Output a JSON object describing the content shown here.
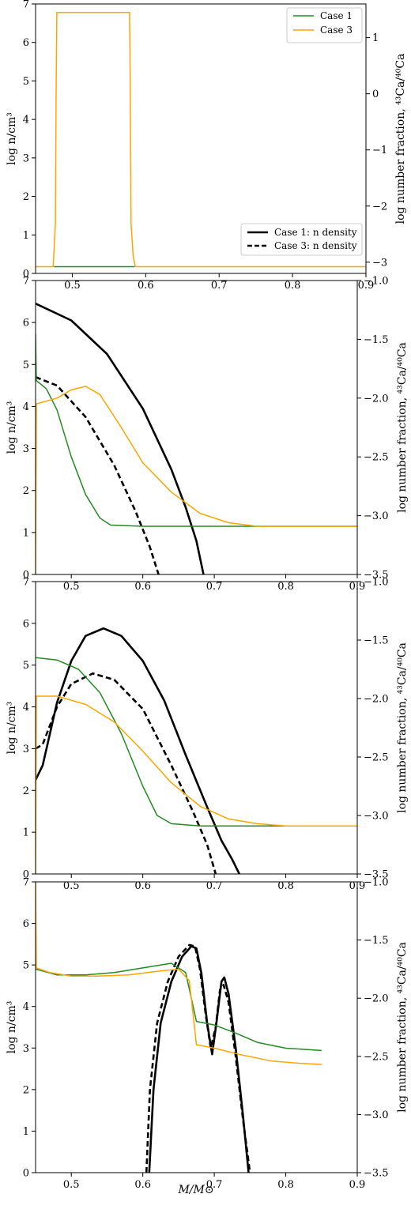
{
  "figure": {
    "xlabel": "M/M⊙"
  },
  "colors": {
    "case1_fraction": "#228B22",
    "case3_fraction": "#FFA500",
    "density": "#000000"
  },
  "chart_data": [
    {
      "type": "line",
      "panel": 1,
      "ylabel_left": "log n/cm³",
      "ylabel_right": "log number fraction, ⁴³Ca/⁴⁰Ca",
      "xlim": [
        0.45,
        0.9
      ],
      "ylim_left": [
        0,
        7
      ],
      "ylim_right": [
        -3.2,
        1.6
      ],
      "xticks": [
        "0.5",
        "0.6",
        "0.7",
        "0.8",
        "0.9"
      ],
      "yticks_left": [
        "0",
        "1",
        "2",
        "3",
        "4",
        "5",
        "6",
        "7"
      ],
      "yticks_right": [
        "−3",
        "−2",
        "−1",
        "0",
        "1"
      ],
      "legend_fraction": {
        "placement": "upper-right",
        "entries": [
          "Case 1",
          "Case 3"
        ]
      },
      "legend_density": {
        "placement": "lower-right",
        "entries": [
          "Case 1: n density",
          "Case 3: n density"
        ]
      },
      "series": [
        {
          "name": "Case 1",
          "axis": "right",
          "style": "solid",
          "color": "#228B22",
          "points": [
            [
              0.475,
              -3.08
            ],
            [
              0.585,
              -3.08
            ]
          ]
        },
        {
          "name": "Case 3",
          "axis": "right",
          "style": "solid",
          "color": "#FFA500",
          "points": [
            [
              0.45,
              -3.08
            ],
            [
              0.474,
              -3.08
            ],
            [
              0.477,
              -2.3
            ],
            [
              0.478,
              0.0
            ],
            [
              0.479,
              1.45
            ],
            [
              0.578,
              1.45
            ],
            [
              0.579,
              0.2
            ],
            [
              0.58,
              -2.3
            ],
            [
              0.583,
              -2.9
            ],
            [
              0.586,
              -3.08
            ],
            [
              0.9,
              -3.08
            ]
          ]
        }
      ]
    },
    {
      "type": "line",
      "panel": 2,
      "ylabel_left": "log n/cm³",
      "ylabel_right": "log number fraction, ⁴³Ca/⁴⁰Ca",
      "xlim": [
        0.45,
        0.9
      ],
      "ylim_left": [
        0,
        7
      ],
      "ylim_right": [
        -3.5,
        -1.0
      ],
      "xticks": [
        "0.5",
        "0.6",
        "0.7",
        "0.8",
        "0.9"
      ],
      "yticks_left": [
        "0",
        "1",
        "2",
        "3",
        "4",
        "5",
        "6",
        "7"
      ],
      "yticks_right": [
        "−3.5",
        "−3.0",
        "−2.5",
        "−2.0",
        "−1.5",
        "−1.0"
      ],
      "series": [
        {
          "name": "Case 1: n density",
          "axis": "left",
          "style": "solid",
          "color": "#000000",
          "points": [
            [
              0.45,
              6.45
            ],
            [
              0.5,
              6.05
            ],
            [
              0.55,
              5.25
            ],
            [
              0.6,
              3.95
            ],
            [
              0.64,
              2.5
            ],
            [
              0.66,
              1.6
            ],
            [
              0.675,
              0.8
            ],
            [
              0.685,
              0.0
            ]
          ]
        },
        {
          "name": "Case 3: n density",
          "axis": "left",
          "style": "dashed",
          "color": "#000000",
          "points": [
            [
              0.45,
              4.7
            ],
            [
              0.48,
              4.5
            ],
            [
              0.52,
              3.75
            ],
            [
              0.56,
              2.6
            ],
            [
              0.59,
              1.5
            ],
            [
              0.61,
              0.65
            ],
            [
              0.622,
              0.0
            ]
          ]
        },
        {
          "name": "Case 1",
          "axis": "right",
          "style": "solid",
          "color": "#228B22",
          "points": [
            [
              0.45,
              -1.45
            ],
            [
              0.451,
              -1.85
            ],
            [
              0.465,
              -1.92
            ],
            [
              0.48,
              -2.1
            ],
            [
              0.5,
              -2.5
            ],
            [
              0.52,
              -2.82
            ],
            [
              0.54,
              -3.02
            ],
            [
              0.555,
              -3.08
            ],
            [
              0.6,
              -3.09
            ],
            [
              0.9,
              -3.09
            ]
          ]
        },
        {
          "name": "Case 3",
          "axis": "right",
          "style": "solid",
          "color": "#FFA500",
          "points": [
            [
              0.45,
              -3.5
            ],
            [
              0.451,
              -2.05
            ],
            [
              0.48,
              -2.0
            ],
            [
              0.5,
              -1.93
            ],
            [
              0.52,
              -1.9
            ],
            [
              0.54,
              -1.97
            ],
            [
              0.57,
              -2.25
            ],
            [
              0.6,
              -2.55
            ],
            [
              0.64,
              -2.8
            ],
            [
              0.68,
              -2.98
            ],
            [
              0.72,
              -3.06
            ],
            [
              0.76,
              -3.09
            ],
            [
              0.9,
              -3.09
            ]
          ]
        }
      ]
    },
    {
      "type": "line",
      "panel": 3,
      "ylabel_left": "log n/cm³",
      "ylabel_right": "log number fraction, ⁴³Ca/⁴⁰Ca",
      "xlim": [
        0.45,
        0.9
      ],
      "ylim_left": [
        0,
        7
      ],
      "ylim_right": [
        -3.5,
        -1.0
      ],
      "xticks": [
        "0.5",
        "0.6",
        "0.7",
        "0.8",
        "0.9"
      ],
      "yticks_left": [
        "0",
        "1",
        "2",
        "3",
        "4",
        "5",
        "6",
        "7"
      ],
      "yticks_right": [
        "−3.5",
        "−3.0",
        "−2.5",
        "−2.0",
        "−1.5",
        "−1.0"
      ],
      "series": [
        {
          "name": "Case 1: n density",
          "axis": "left",
          "style": "solid",
          "color": "#000000",
          "points": [
            [
              0.45,
              2.25
            ],
            [
              0.46,
              2.6
            ],
            [
              0.48,
              4.1
            ],
            [
              0.5,
              5.1
            ],
            [
              0.52,
              5.7
            ],
            [
              0.545,
              5.88
            ],
            [
              0.57,
              5.7
            ],
            [
              0.6,
              5.1
            ],
            [
              0.63,
              4.15
            ],
            [
              0.66,
              2.85
            ],
            [
              0.69,
              1.6
            ],
            [
              0.71,
              0.8
            ],
            [
              0.725,
              0.35
            ],
            [
              0.735,
              0.0
            ]
          ]
        },
        {
          "name": "Case 3: n density",
          "axis": "left",
          "style": "dashed",
          "color": "#000000",
          "points": [
            [
              0.45,
              3.0
            ],
            [
              0.46,
              3.1
            ],
            [
              0.48,
              4.0
            ],
            [
              0.5,
              4.55
            ],
            [
              0.53,
              4.8
            ],
            [
              0.56,
              4.65
            ],
            [
              0.6,
              3.95
            ],
            [
              0.64,
              2.6
            ],
            [
              0.67,
              1.5
            ],
            [
              0.69,
              0.7
            ],
            [
              0.702,
              0.0
            ]
          ]
        },
        {
          "name": "Case 1",
          "axis": "right",
          "style": "solid",
          "color": "#228B22",
          "points": [
            [
              0.45,
              -1.65
            ],
            [
              0.48,
              -1.67
            ],
            [
              0.51,
              -1.75
            ],
            [
              0.54,
              -1.95
            ],
            [
              0.57,
              -2.3
            ],
            [
              0.6,
              -2.75
            ],
            [
              0.62,
              -3.0
            ],
            [
              0.64,
              -3.07
            ],
            [
              0.68,
              -3.09
            ],
            [
              0.9,
              -3.09
            ]
          ]
        },
        {
          "name": "Case 3",
          "axis": "right",
          "style": "solid",
          "color": "#FFA500",
          "points": [
            [
              0.45,
              -3.5
            ],
            [
              0.451,
              -1.98
            ],
            [
              0.48,
              -1.98
            ],
            [
              0.52,
              -2.05
            ],
            [
              0.56,
              -2.2
            ],
            [
              0.6,
              -2.45
            ],
            [
              0.64,
              -2.72
            ],
            [
              0.68,
              -2.92
            ],
            [
              0.72,
              -3.03
            ],
            [
              0.76,
              -3.07
            ],
            [
              0.8,
              -3.09
            ],
            [
              0.9,
              -3.09
            ]
          ]
        }
      ]
    },
    {
      "type": "line",
      "panel": 4,
      "ylabel_left": "log n/cm³",
      "ylabel_right": "log number fraction, ⁴³Ca/⁴⁰Ca",
      "xlim": [
        0.45,
        0.9
      ],
      "ylim_left": [
        0,
        7
      ],
      "ylim_right": [
        -3.5,
        -1.0
      ],
      "xticks": [
        "0.5",
        "0.6",
        "0.7",
        "0.8",
        "0.9"
      ],
      "yticks_left": [
        "0",
        "1",
        "2",
        "3",
        "4",
        "5",
        "6",
        "7"
      ],
      "yticks_right": [
        "−3.5",
        "−3.0",
        "−2.5",
        "−2.0",
        "−1.5",
        "−1.0"
      ],
      "series": [
        {
          "name": "Case 1: n density",
          "axis": "left",
          "style": "solid",
          "color": "#000000",
          "points": [
            [
              0.609,
              0.0
            ],
            [
              0.615,
              2.0
            ],
            [
              0.625,
              3.6
            ],
            [
              0.64,
              4.6
            ],
            [
              0.655,
              5.2
            ],
            [
              0.668,
              5.45
            ],
            [
              0.675,
              5.4
            ],
            [
              0.682,
              4.8
            ],
            [
              0.69,
              3.6
            ],
            [
              0.697,
              2.85
            ],
            [
              0.703,
              3.6
            ],
            [
              0.71,
              4.6
            ],
            [
              0.714,
              4.7
            ],
            [
              0.72,
              4.3
            ],
            [
              0.73,
              3.0
            ],
            [
              0.74,
              1.4
            ],
            [
              0.748,
              0.0
            ]
          ]
        },
        {
          "name": "Case 3: n density",
          "axis": "left",
          "style": "dashed",
          "color": "#000000",
          "points": [
            [
              0.605,
              0.0
            ],
            [
              0.61,
              2.0
            ],
            [
              0.62,
              3.6
            ],
            [
              0.635,
              4.6
            ],
            [
              0.65,
              5.2
            ],
            [
              0.665,
              5.48
            ],
            [
              0.673,
              5.45
            ],
            [
              0.68,
              4.9
            ],
            [
              0.688,
              3.8
            ],
            [
              0.695,
              3.0
            ],
            [
              0.702,
              3.5
            ],
            [
              0.708,
              4.4
            ],
            [
              0.713,
              4.52
            ],
            [
              0.72,
              4.1
            ],
            [
              0.73,
              2.8
            ],
            [
              0.74,
              1.3
            ],
            [
              0.75,
              0.0
            ]
          ]
        },
        {
          "name": "Case 1",
          "axis": "right",
          "style": "solid",
          "color": "#228B22",
          "points": [
            [
              0.45,
              -1.75
            ],
            [
              0.48,
              -1.8
            ],
            [
              0.52,
              -1.8
            ],
            [
              0.56,
              -1.78
            ],
            [
              0.6,
              -1.74
            ],
            [
              0.64,
              -1.7
            ],
            [
              0.66,
              -1.78
            ],
            [
              0.675,
              -2.2
            ],
            [
              0.7,
              -2.23
            ],
            [
              0.73,
              -2.3
            ],
            [
              0.76,
              -2.38
            ],
            [
              0.8,
              -2.43
            ],
            [
              0.85,
              -2.45
            ]
          ]
        },
        {
          "name": "Case 3",
          "axis": "right",
          "style": "solid",
          "color": "#FFA500",
          "points": [
            [
              0.45,
              -1.0
            ],
            [
              0.451,
              -1.74
            ],
            [
              0.47,
              -1.78
            ],
            [
              0.5,
              -1.81
            ],
            [
              0.54,
              -1.81
            ],
            [
              0.58,
              -1.8
            ],
            [
              0.62,
              -1.77
            ],
            [
              0.65,
              -1.75
            ],
            [
              0.665,
              -1.85
            ],
            [
              0.675,
              -2.4
            ],
            [
              0.7,
              -2.43
            ],
            [
              0.74,
              -2.49
            ],
            [
              0.78,
              -2.54
            ],
            [
              0.82,
              -2.56
            ],
            [
              0.85,
              -2.57
            ]
          ]
        }
      ]
    }
  ]
}
